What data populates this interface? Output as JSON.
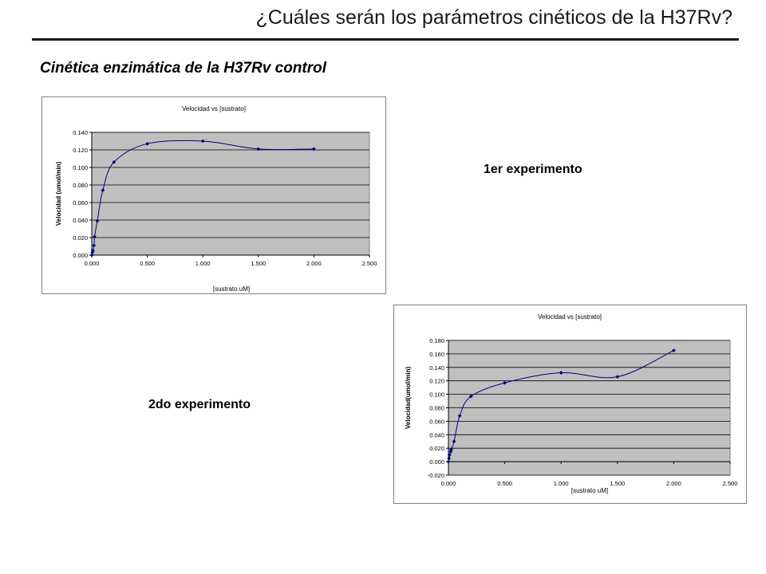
{
  "slide": {
    "title": "¿Cuáles serán los parámetros cinéticos de la H37Rv?",
    "subtitle": "Cinética enzimática de la H37Rv control",
    "label_1": "1er experimento",
    "label_2": "2do experimento"
  },
  "colors": {
    "plot_area": "#c0c0c0",
    "series": "#000080",
    "gridline": "#000000"
  },
  "chart_data": [
    {
      "type": "scatter",
      "title": "Velocidad vs [sustrato]",
      "xlabel": "[sustrato uM]",
      "ylabel": "Velocidad (umol/min)",
      "xlim": [
        0,
        2.5
      ],
      "ylim": [
        0,
        0.14
      ],
      "xticks": [
        "0.000",
        "0.500",
        "1.000",
        "1.500",
        "2.000",
        "2.500"
      ],
      "xtick_values": [
        0,
        0.5,
        1.0,
        1.5,
        2.0,
        2.5
      ],
      "yticks": [
        "0.000",
        "0.020",
        "0.040",
        "0.060",
        "0.080",
        "0.100",
        "0.120",
        "0.140"
      ],
      "ytick_values": [
        0,
        0.02,
        0.04,
        0.06,
        0.08,
        0.1,
        0.12,
        0.14
      ],
      "grid": true,
      "legend": "none",
      "series": [
        {
          "x": [
            0.0,
            0.005,
            0.01,
            0.02,
            0.025,
            0.05,
            0.1,
            0.2,
            0.5,
            1.0,
            1.5,
            2.0
          ],
          "y": [
            0.0,
            0.003,
            0.005,
            0.011,
            0.021,
            0.039,
            0.074,
            0.106,
            0.127,
            0.13,
            0.121,
            0.121
          ]
        }
      ]
    },
    {
      "type": "scatter",
      "title": "Velocidad vs [sustrato]",
      "xlabel": "[sustrato uM]",
      "ylabel": "Velocidad(umol/min)",
      "xlim": [
        0,
        2.5
      ],
      "ylim": [
        -0.02,
        0.18
      ],
      "xticks": [
        "0.000",
        "0.500",
        "1.000",
        "1.500",
        "2.000",
        "2.500"
      ],
      "xtick_values": [
        0,
        0.5,
        1.0,
        1.5,
        2.0,
        2.5
      ],
      "yticks": [
        "-0.020",
        "0.000",
        "0.020",
        "0.040",
        "0.060",
        "0.080",
        "0.100",
        "0.120",
        "0.140",
        "0.160",
        "0.180"
      ],
      "ytick_values": [
        -0.02,
        0,
        0.02,
        0.04,
        0.06,
        0.08,
        0.1,
        0.12,
        0.14,
        0.16,
        0.18
      ],
      "grid": true,
      "legend": "none",
      "series": [
        {
          "x": [
            0.0,
            0.005,
            0.01,
            0.02,
            0.025,
            0.05,
            0.1,
            0.2,
            0.5,
            1.0,
            1.5,
            2.0
          ],
          "y": [
            0.0,
            0.005,
            0.01,
            0.015,
            0.018,
            0.03,
            0.068,
            0.097,
            0.117,
            0.132,
            0.126,
            0.165
          ]
        }
      ]
    }
  ]
}
